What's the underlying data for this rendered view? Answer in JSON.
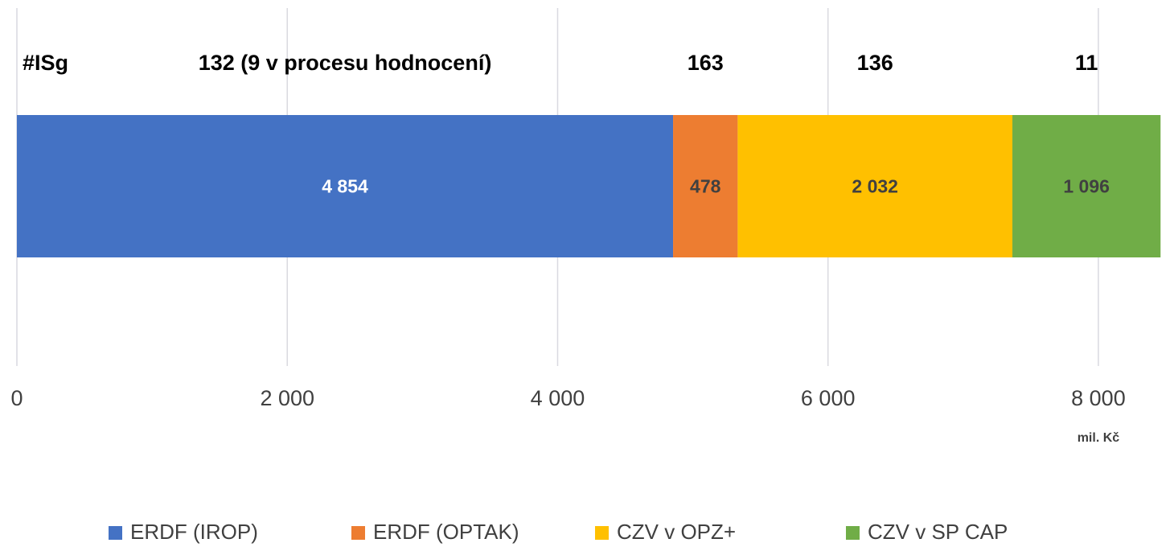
{
  "chart_data": {
    "type": "stacked_bar_horizontal",
    "count_header": "#ISg",
    "count_labels": [
      "132 (9 v procesu hodnocení)",
      "163",
      "136",
      "11"
    ],
    "series": [
      {
        "name": "ERDF (IROP)",
        "color": "#4472c4",
        "label_color": "#ffffff",
        "values": [
          4854
        ],
        "value_labels": [
          "4 854"
        ]
      },
      {
        "name": "ERDF (OPTAK)",
        "color": "#ed7d31",
        "label_color": "#404040",
        "values": [
          478
        ]
      },
      {
        "name": "CZV v OPZ+",
        "color": "#ffc000",
        "label_color": "#404040",
        "values": [
          2032
        ],
        "value_labels": [
          "2 032"
        ]
      },
      {
        "name": "CZV v SP CAP",
        "color": "#70ad47",
        "label_color": "#404040",
        "values": [
          1096
        ],
        "value_labels": [
          "1 096"
        ]
      }
    ],
    "xlim": [
      0,
      8500
    ],
    "xticks": [
      0,
      {
        "value": 2000,
        "label": "2 000"
      },
      {
        "value": 4000,
        "label": "4 000"
      },
      {
        "value": 6000,
        "label": "6 000"
      },
      {
        "value": 8000,
        "label": "8 000"
      }
    ],
    "x_unit": "mil. Kč",
    "grid": true,
    "legend": "bottom"
  }
}
